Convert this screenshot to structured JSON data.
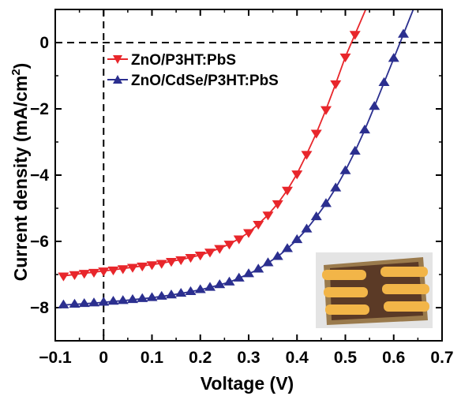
{
  "chart_data": {
    "type": "line",
    "xlabel": "Voltage (V)",
    "ylabel": "Current density (mA/cm²)",
    "ylabel_main": "Current density (mA/cm",
    "ylabel_sup": "2",
    "ylabel_tail": ")",
    "xlim": [
      -0.1,
      0.7
    ],
    "ylim": [
      -9,
      1
    ],
    "xticks": [
      -0.1,
      0,
      0.1,
      0.2,
      0.3,
      0.4,
      0.5,
      0.6,
      0.7
    ],
    "xtick_labels": [
      "−0.1",
      "0",
      "0.1",
      "0.2",
      "0.3",
      "0.4",
      "0.5",
      "0.6",
      "0.7"
    ],
    "yticks": [
      0,
      -2,
      -4,
      -6,
      -8
    ],
    "ytick_labels": [
      "0",
      "−2",
      "−4",
      "−6",
      "−8"
    ],
    "grid": false,
    "legend_position": "top-left",
    "reference_lines": {
      "y": 0,
      "x": 0
    },
    "series": [
      {
        "name": "ZnO/P3HT:PbS",
        "color": "#e8262b",
        "marker": "triangle-down",
        "x": [
          -0.083,
          -0.06,
          -0.04,
          -0.02,
          0.0,
          0.02,
          0.04,
          0.06,
          0.08,
          0.1,
          0.12,
          0.14,
          0.16,
          0.18,
          0.2,
          0.22,
          0.24,
          0.26,
          0.28,
          0.3,
          0.32,
          0.34,
          0.36,
          0.38,
          0.4,
          0.42,
          0.44,
          0.46,
          0.48,
          0.5,
          0.52
        ],
        "y": [
          -7.04,
          -7.0,
          -6.96,
          -6.93,
          -6.89,
          -6.86,
          -6.82,
          -6.78,
          -6.74,
          -6.7,
          -6.66,
          -6.6,
          -6.55,
          -6.48,
          -6.41,
          -6.32,
          -6.21,
          -6.08,
          -5.92,
          -5.73,
          -5.48,
          -5.2,
          -4.86,
          -4.45,
          -3.96,
          -3.37,
          -2.73,
          -2.02,
          -1.24,
          -0.43,
          0.25
        ]
      },
      {
        "name": "ZnO/CdSe/P3HT:PbS",
        "color": "#2b2f8f",
        "marker": "triangle-up",
        "x": [
          -0.083,
          -0.06,
          -0.04,
          -0.02,
          0.0,
          0.02,
          0.04,
          0.06,
          0.08,
          0.1,
          0.12,
          0.14,
          0.16,
          0.18,
          0.2,
          0.22,
          0.24,
          0.26,
          0.28,
          0.3,
          0.32,
          0.34,
          0.36,
          0.38,
          0.4,
          0.42,
          0.44,
          0.46,
          0.48,
          0.5,
          0.52,
          0.54,
          0.56,
          0.58,
          0.6,
          0.62
        ],
        "y": [
          -7.92,
          -7.9,
          -7.88,
          -7.86,
          -7.84,
          -7.81,
          -7.79,
          -7.76,
          -7.73,
          -7.7,
          -7.66,
          -7.62,
          -7.57,
          -7.52,
          -7.46,
          -7.39,
          -7.31,
          -7.23,
          -7.11,
          -6.98,
          -6.84,
          -6.65,
          -6.46,
          -6.22,
          -5.95,
          -5.63,
          -5.26,
          -4.86,
          -4.39,
          -3.87,
          -3.28,
          -2.64,
          -1.93,
          -1.21,
          -0.48,
          0.25
        ]
      }
    ]
  }
}
